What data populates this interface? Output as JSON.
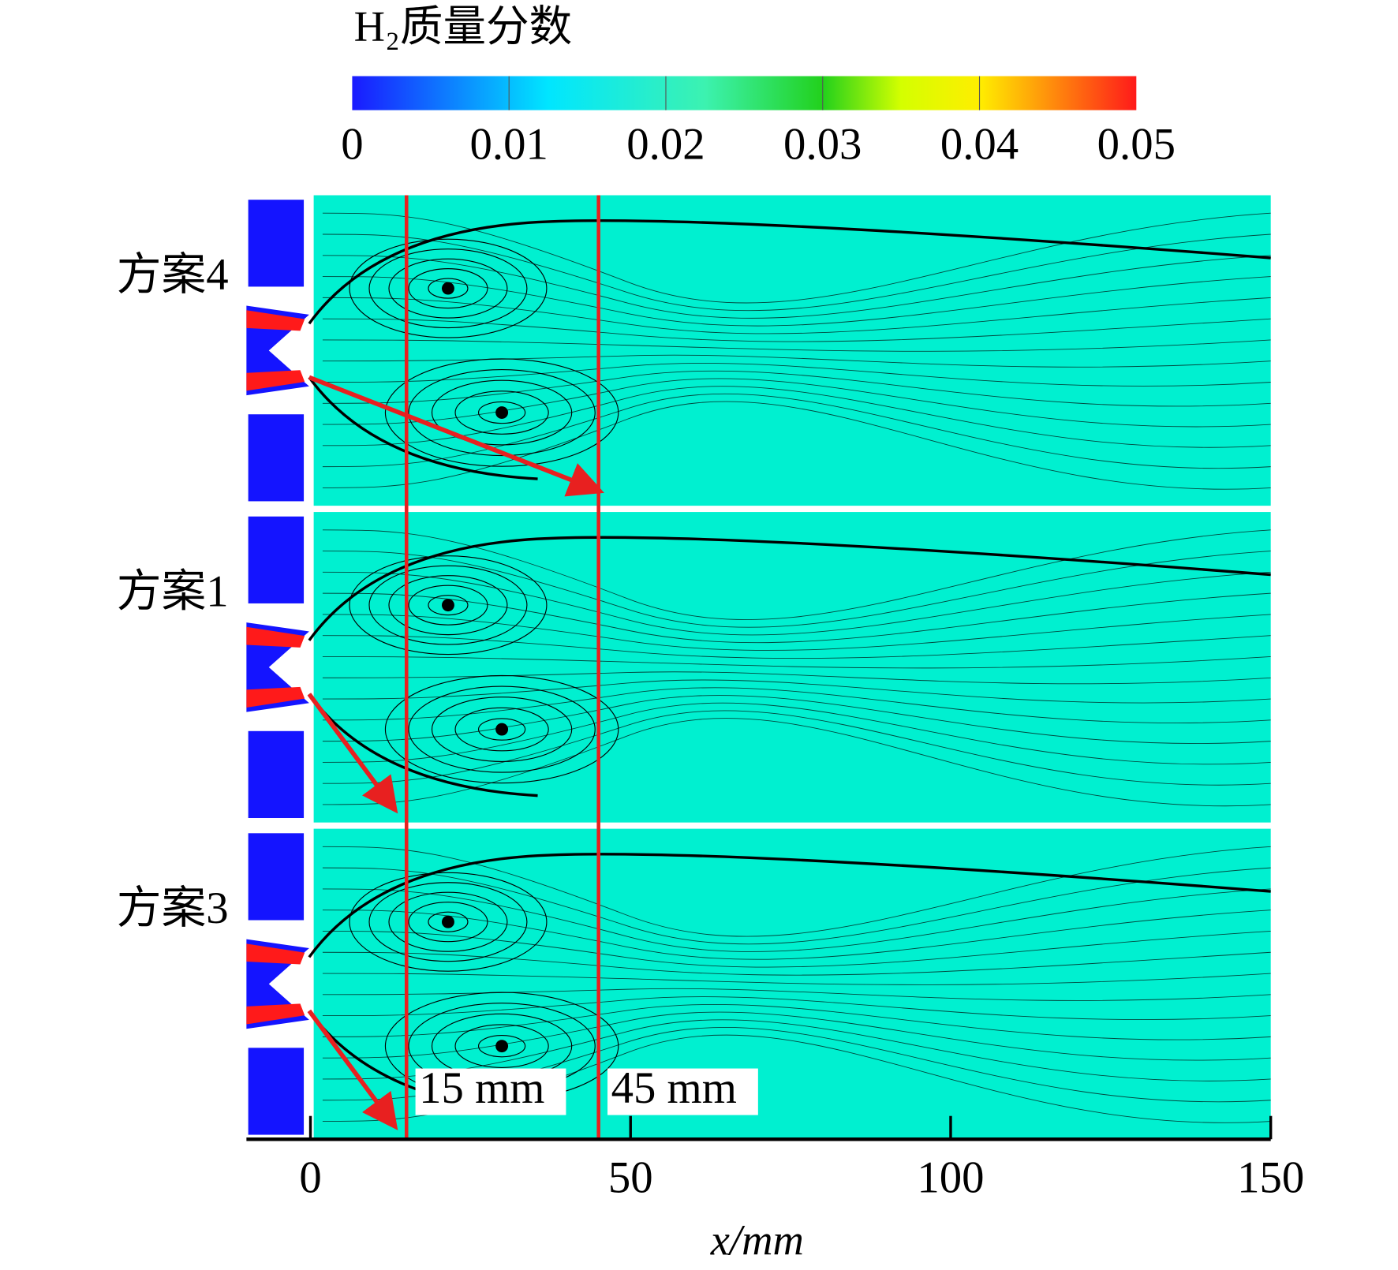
{
  "chart_data": {
    "type": "contour",
    "title": "H₂质量分数",
    "colorbar": {
      "lim": [
        0,
        0.05
      ],
      "ticks": [
        0,
        0.01,
        0.02,
        0.03,
        0.04,
        0.05
      ]
    },
    "panels": [
      "方案4",
      "方案1",
      "方案3"
    ],
    "xlim": [
      -10,
      150
    ],
    "xticks": [
      0,
      50,
      100,
      150
    ],
    "xlabel": "x/mm",
    "reference_lines": [
      {
        "value": 15,
        "label": "15 mm"
      },
      {
        "value": 45,
        "label": "45 mm"
      }
    ]
  }
}
